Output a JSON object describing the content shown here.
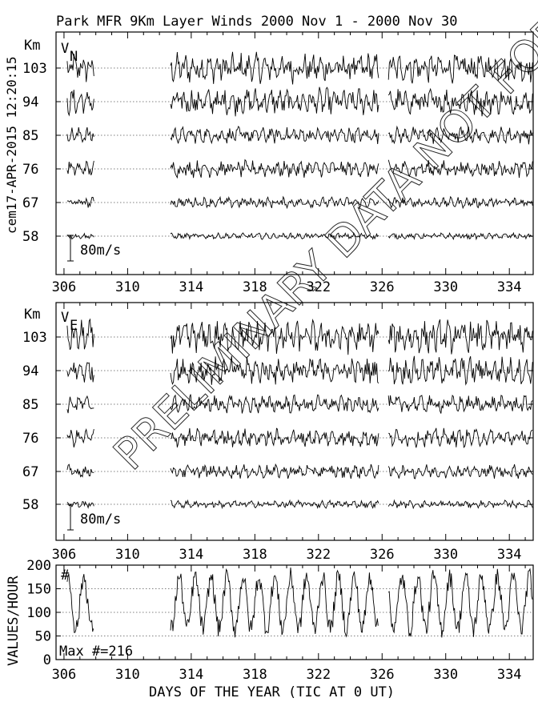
{
  "title": "Park MFR 9Km Layer Winds 2000 Nov  1 - 2000 Nov 30",
  "side_label": "cem17-APR-2015 12:20:15",
  "watermark": "PRELIMINARY DATA  NOT FOR PUBLICATION",
  "xlabel": "DAYS OF THE YEAR (TIC AT 0 UT)",
  "chart_data": [
    {
      "type": "line",
      "panel": "VN",
      "component_label": "V",
      "component_subscript": "N",
      "unit_label": "Km",
      "altitudes": [
        "103",
        "94",
        "85",
        "76",
        "67",
        "58"
      ],
      "scale_label": "80m/s",
      "xlim": [
        305.5,
        335.5
      ],
      "xticks": [
        "306",
        "310",
        "314",
        "318",
        "322",
        "326",
        "330",
        "334"
      ],
      "segments": [
        [
          306.2,
          307.9
        ],
        [
          312.7,
          325.8
        ],
        [
          326.4,
          335.5
        ]
      ],
      "amplitudes": [
        1.0,
        0.9,
        0.55,
        0.55,
        0.35,
        0.2
      ]
    },
    {
      "type": "line",
      "panel": "VE",
      "component_label": "V",
      "component_subscript": "E",
      "unit_label": "Km",
      "altitudes": [
        "103",
        "94",
        "85",
        "76",
        "67",
        "58"
      ],
      "scale_label": "80m/s",
      "xlim": [
        305.5,
        335.5
      ],
      "xticks": [
        "306",
        "310",
        "314",
        "318",
        "322",
        "326",
        "330",
        "334"
      ],
      "segments": [
        [
          306.2,
          307.9
        ],
        [
          312.7,
          325.8
        ],
        [
          326.4,
          335.5
        ]
      ],
      "amplitudes": [
        1.1,
        0.9,
        0.6,
        0.6,
        0.45,
        0.25
      ]
    },
    {
      "type": "line",
      "panel": "values-per-hour",
      "ylabel": "VALUES/HOUR",
      "yticks": [
        "0",
        "50",
        "100",
        "150",
        "200"
      ],
      "ylim": [
        0,
        200
      ],
      "series_label": "#",
      "annotation": "Max #=216",
      "xlim": [
        305.5,
        335.5
      ],
      "xticks": [
        "306",
        "310",
        "314",
        "318",
        "322",
        "326",
        "330",
        "334"
      ],
      "segments": [
        [
          306.2,
          307.9
        ],
        [
          312.7,
          325.8
        ],
        [
          326.4,
          335.5
        ]
      ],
      "mean": 120,
      "daily_amplitude": 55
    }
  ]
}
